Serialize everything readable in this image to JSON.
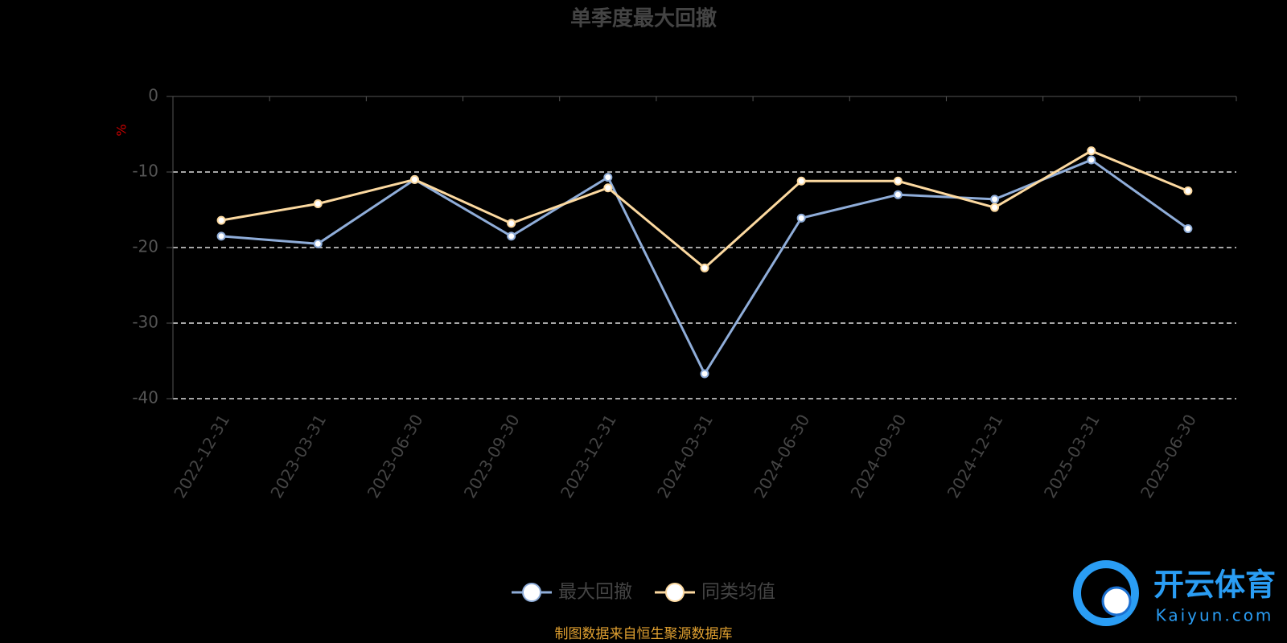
{
  "chart_data": {
    "type": "line",
    "title": "单季度最大回撤",
    "y_label": "%",
    "categories": [
      "2022-12-31",
      "2023-03-31",
      "2023-06-30",
      "2023-09-30",
      "2023-12-31",
      "2024-03-31",
      "2024-06-30",
      "2024-09-30",
      "2024-12-31",
      "2025-03-31",
      "2025-06-30"
    ],
    "series": [
      {
        "name": "最大回撤",
        "color": "#8fadd9",
        "values": [
          -18.5,
          -19.5,
          -11.0,
          -18.5,
          -10.7,
          -36.7,
          -16.1,
          -13.0,
          -13.6,
          -8.4,
          -17.5
        ]
      },
      {
        "name": "同类均值",
        "color": "#fcd9a0",
        "values": [
          -16.4,
          -14.2,
          -11.0,
          -16.8,
          -12.1,
          -22.7,
          -11.2,
          -11.2,
          -14.7,
          -7.2,
          -12.5
        ]
      }
    ],
    "ylim": [
      -40,
      0
    ],
    "yticks": [
      0,
      -10,
      -20,
      -30,
      -40
    ],
    "grid": true,
    "source": "制图数据来自恒生聚源数据库",
    "watermark": {
      "brand": "开云体育",
      "site": "Kaiyun.com"
    }
  }
}
